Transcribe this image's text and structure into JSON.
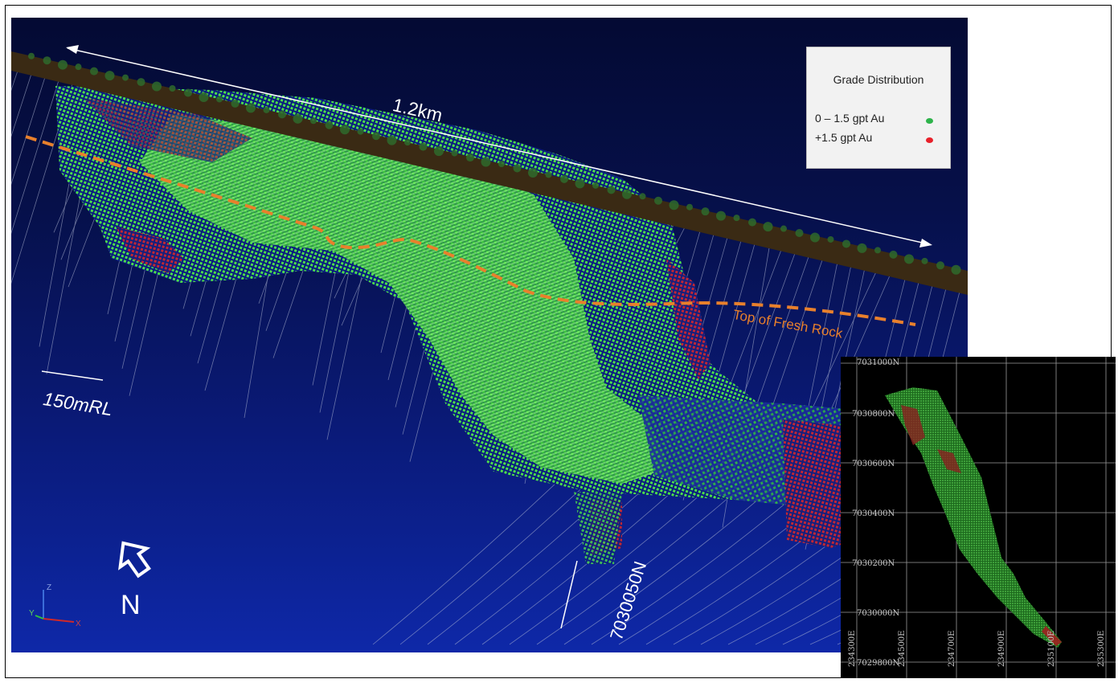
{
  "labels": {
    "distance": "1.2km",
    "scale": "150mRL",
    "fresh_rock": "Top of Fresh Rock",
    "section": "7030050N",
    "north": "N"
  },
  "legend": {
    "title": "Grade Distribution",
    "items": [
      {
        "label": "0 – 1.5 gpt Au",
        "color": "#2db34a"
      },
      {
        "label": "+1.5 gpt Au",
        "color": "#e8202a"
      }
    ]
  },
  "inset": {
    "northings": [
      "7031000N",
      "7030800N",
      "7030600N",
      "7030400N",
      "7030200N",
      "7030000N",
      "7029800N"
    ],
    "eastings": [
      "234300E",
      "234500E",
      "234700E",
      "234900E",
      "235100E",
      "235300E"
    ]
  },
  "axis_triad": {
    "z": "Z",
    "y": "Y",
    "x": "X"
  },
  "colors": {
    "low_grade": "#3cd23c",
    "high_grade": "#c8202a",
    "fresh_rock_line": "#e8802c",
    "surface": "#3a2a14",
    "background": "#0a1a78"
  }
}
